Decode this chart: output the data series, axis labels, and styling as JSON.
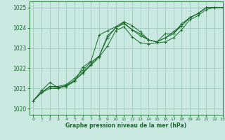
{
  "xlabel": "Graphe pression niveau de la mer (hPa)",
  "bg_color": "#c8e8e0",
  "grid_color": "#a0c8c0",
  "line_color": "#1a6b2a",
  "xlim": [
    -0.5,
    23
  ],
  "ylim": [
    1019.7,
    1025.3
  ],
  "yticks": [
    1020,
    1021,
    1022,
    1023,
    1024,
    1025
  ],
  "xticks": [
    0,
    1,
    2,
    3,
    4,
    5,
    6,
    7,
    8,
    9,
    10,
    11,
    12,
    13,
    14,
    15,
    16,
    17,
    18,
    19,
    20,
    21,
    22,
    23
  ],
  "series": [
    [
      1020.4,
      1020.8,
      1021.1,
      1021.1,
      1021.2,
      1021.5,
      1021.9,
      1022.3,
      1022.6,
      1023.5,
      1024.0,
      1024.25,
      1023.9,
      1023.6,
      1023.4,
      1023.3,
      1023.5,
      1023.7,
      1024.1,
      1024.5,
      1024.7,
      1025.0,
      1025.0,
      1025.0
    ],
    [
      1020.4,
      1020.8,
      1021.1,
      1021.05,
      1021.15,
      1021.4,
      1021.75,
      1022.15,
      1022.55,
      1023.1,
      1023.85,
      1024.05,
      1023.55,
      1023.25,
      1023.2,
      1023.25,
      1023.3,
      1023.5,
      1023.9,
      1024.4,
      1024.6,
      1024.9,
      1025.0,
      1025.0
    ],
    [
      1020.4,
      1020.8,
      1021.0,
      1021.0,
      1021.15,
      1021.4,
      1021.8,
      1022.2,
      1022.6,
      1023.6,
      1024.0,
      1024.2,
      1023.9,
      1023.7,
      1023.4,
      1023.3,
      1023.5,
      1023.8,
      1024.1,
      1024.5,
      1024.7,
      1025.0,
      1025.0,
      1025.0
    ],
    [
      1020.4,
      1020.9,
      1021.3,
      1021.05,
      1021.1,
      1021.35,
      1022.05,
      1022.35,
      1023.65,
      1023.85,
      1024.05,
      1024.3,
      1024.1,
      1023.8,
      1023.4,
      1023.3,
      1023.7,
      1023.7,
      1024.2,
      1024.5,
      1024.7,
      1025.0,
      1025.0,
      1025.0
    ]
  ]
}
